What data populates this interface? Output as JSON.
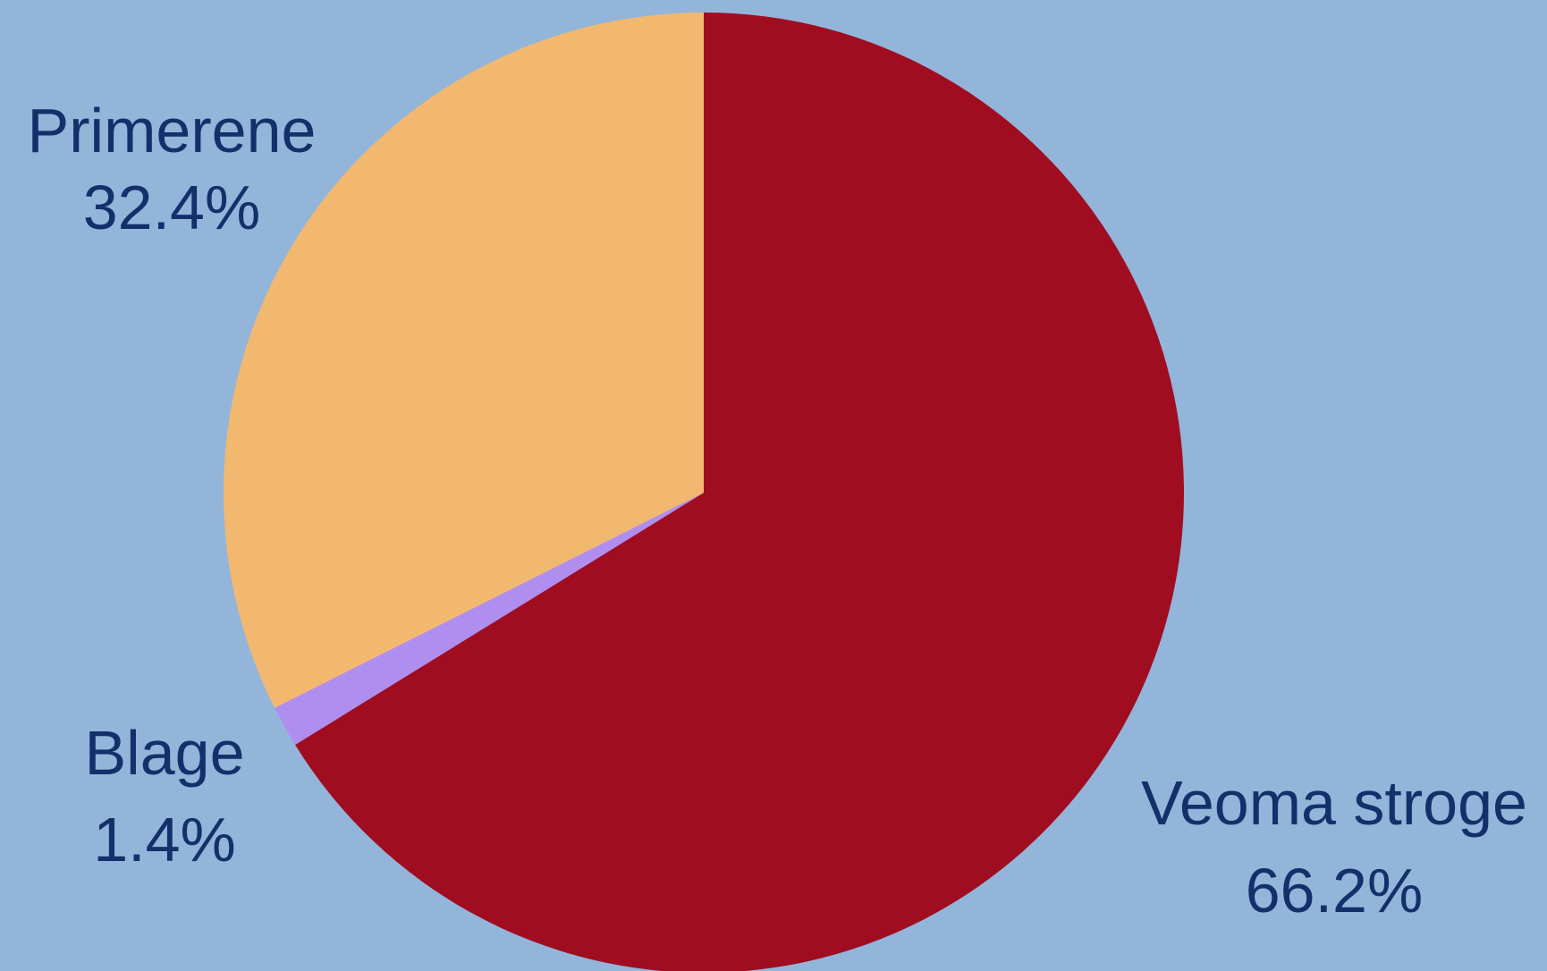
{
  "chart_data": {
    "type": "pie",
    "background_color": "#93b5da",
    "label_color": "#14306a",
    "start_angle_deg": 0,
    "direction": "clockwise",
    "slices": [
      {
        "label": "Veoma stroge",
        "value": 66.2,
        "percent_label": "66.2%",
        "color": "#a00d21"
      },
      {
        "label": "Blage",
        "value": 1.4,
        "percent_label": "1.4%",
        "color": "#b08ef0"
      },
      {
        "label": "Primerene",
        "value": 32.4,
        "percent_label": "32.4%",
        "color": "#f2b870"
      }
    ]
  }
}
